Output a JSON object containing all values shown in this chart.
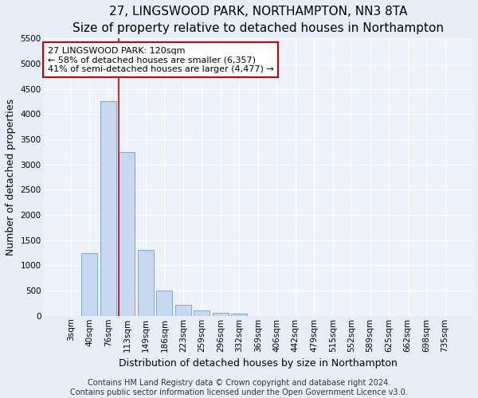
{
  "title": "27, LINGSWOOD PARK, NORTHAMPTON, NN3 8TA",
  "subtitle": "Size of property relative to detached houses in Northampton",
  "xlabel": "Distribution of detached houses by size in Northampton",
  "ylabel": "Number of detached properties",
  "footer_line1": "Contains HM Land Registry data © Crown copyright and database right 2024.",
  "footer_line2": "Contains public sector information licensed under the Open Government Licence v3.0.",
  "bar_labels": [
    "3sqm",
    "40sqm",
    "76sqm",
    "113sqm",
    "149sqm",
    "186sqm",
    "223sqm",
    "259sqm",
    "296sqm",
    "332sqm",
    "369sqm",
    "406sqm",
    "442sqm",
    "479sqm",
    "515sqm",
    "552sqm",
    "589sqm",
    "625sqm",
    "662sqm",
    "698sqm",
    "735sqm"
  ],
  "bar_values": [
    0,
    1250,
    4250,
    3250,
    1300,
    500,
    225,
    100,
    65,
    40,
    0,
    0,
    0,
    0,
    0,
    0,
    0,
    0,
    0,
    0,
    0
  ],
  "bar_color": "#c5d8ef",
  "bar_edge_color": "#5b8db8",
  "annotation_line1": "27 LINGSWOOD PARK: 120sqm",
  "annotation_line2": "← 58% of detached houses are smaller (6,357)",
  "annotation_line3": "41% of semi-detached houses are larger (4,477) →",
  "annotation_box_color": "white",
  "annotation_box_edge_color": "#cc0000",
  "line_color": "#cc0000",
  "line_x_index": 2.5,
  "ylim": [
    0,
    5500
  ],
  "yticks": [
    0,
    500,
    1000,
    1500,
    2000,
    2500,
    3000,
    3500,
    4000,
    4500,
    5000,
    5500
  ],
  "background_color": "#e8eef8",
  "plot_area_color": "#eef2fa",
  "grid_color": "white",
  "title_fontsize": 11,
  "subtitle_fontsize": 9.5,
  "axis_label_fontsize": 9,
  "tick_fontsize": 7.5,
  "annotation_fontsize": 8,
  "footer_fontsize": 7
}
